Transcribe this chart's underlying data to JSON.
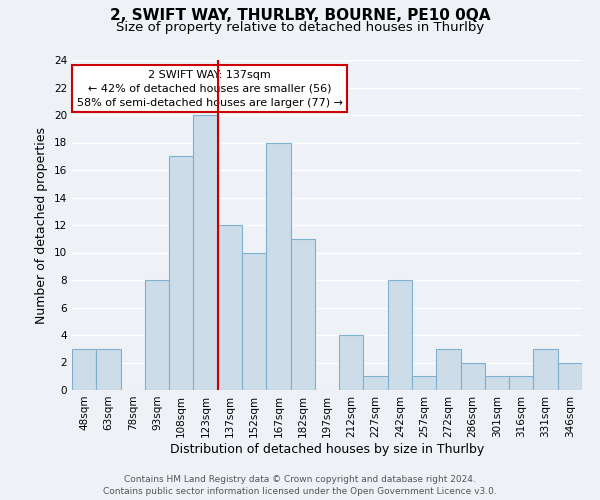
{
  "title": "2, SWIFT WAY, THURLBY, BOURNE, PE10 0QA",
  "subtitle": "Size of property relative to detached houses in Thurlby",
  "xlabel": "Distribution of detached houses by size in Thurlby",
  "ylabel": "Number of detached properties",
  "categories": [
    "48sqm",
    "63sqm",
    "78sqm",
    "93sqm",
    "108sqm",
    "123sqm",
    "137sqm",
    "152sqm",
    "167sqm",
    "182sqm",
    "197sqm",
    "212sqm",
    "227sqm",
    "242sqm",
    "257sqm",
    "272sqm",
    "286sqm",
    "301sqm",
    "316sqm",
    "331sqm",
    "346sqm"
  ],
  "values": [
    3,
    3,
    0,
    8,
    17,
    20,
    12,
    10,
    18,
    11,
    0,
    4,
    1,
    8,
    1,
    3,
    2,
    1,
    1,
    3,
    2
  ],
  "bar_color": "#ccdce8",
  "bar_edge_color": "#7fb0d0",
  "highlight_index": 6,
  "highlight_line_color": "#cc0000",
  "ylim": [
    0,
    24
  ],
  "yticks": [
    0,
    2,
    4,
    6,
    8,
    10,
    12,
    14,
    16,
    18,
    20,
    22,
    24
  ],
  "annotation_title": "2 SWIFT WAY: 137sqm",
  "annotation_line1": "← 42% of detached houses are smaller (56)",
  "annotation_line2": "58% of semi-detached houses are larger (77) →",
  "annotation_box_color": "#ffffff",
  "annotation_box_edge": "#cc0000",
  "footer1": "Contains HM Land Registry data © Crown copyright and database right 2024.",
  "footer2": "Contains public sector information licensed under the Open Government Licence v3.0.",
  "background_color": "#eef2f7",
  "grid_color": "#ffffff",
  "title_fontsize": 11,
  "subtitle_fontsize": 9.5,
  "axis_label_fontsize": 9,
  "tick_fontsize": 7.5,
  "annotation_fontsize": 8,
  "footer_fontsize": 6.5
}
